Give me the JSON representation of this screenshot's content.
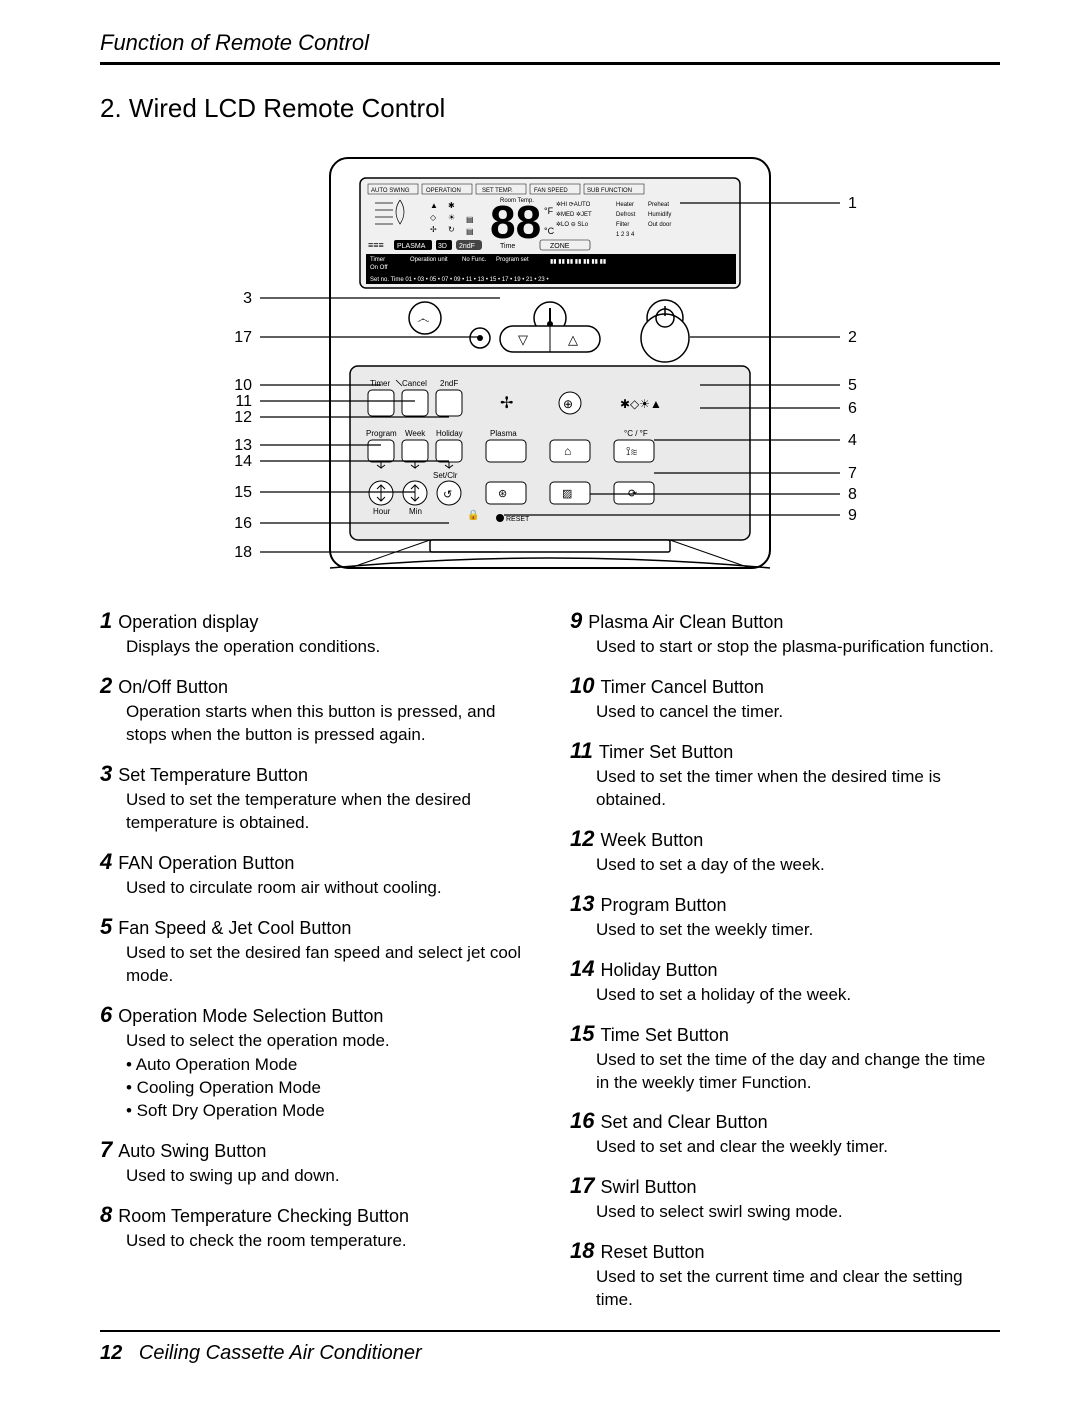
{
  "header": {
    "title": "Function of Remote Control"
  },
  "section": {
    "title": "2. Wired LCD Remote Control"
  },
  "diagram": {
    "left_labels": [
      "3",
      "17",
      "10",
      "11",
      "12",
      "13",
      "14",
      "15",
      "16",
      "18"
    ],
    "right_labels": [
      "1",
      "2",
      "5",
      "6",
      "4",
      "7",
      "8",
      "9"
    ],
    "left_y": [
      150,
      189,
      237,
      253,
      269,
      297,
      313,
      344,
      375,
      404
    ],
    "right_y": [
      55,
      189,
      237,
      260,
      292,
      325,
      346,
      367
    ],
    "device_stroke": "#000000",
    "device_fill": "#f3f3f3",
    "label_fontsize": 16,
    "btn_labels": {
      "timer": "Timer",
      "cancel": "Cancel",
      "secondf": "2ndF",
      "program": "Program",
      "week": "Week",
      "holiday": "Holiday",
      "plasma": "Plasma",
      "hour": "Hour",
      "min": "Min",
      "setclr": "Set/Clr",
      "cf": "°C / °F",
      "reset": "RESET"
    }
  },
  "items_left": [
    {
      "n": "1",
      "t": "Operation display",
      "d": "Displays the operation conditions."
    },
    {
      "n": "2",
      "t": "On/Off Button",
      "d": "Operation starts when this button is pressed, and stops when the button is pressed again."
    },
    {
      "n": "3",
      "t": "Set Temperature Button",
      "d": "Used to set the temperature when the desired temperature is obtained."
    },
    {
      "n": "4",
      "t": "FAN Operation Button",
      "d": "Used to circulate room air without cooling."
    },
    {
      "n": "5",
      "t": "Fan Speed & Jet Cool Button",
      "d": "Used to set the desired fan speed and select jet cool mode."
    },
    {
      "n": "6",
      "t": "Operation Mode Selection Button",
      "d": "Used to select the operation mode.",
      "sub": [
        "• Auto Operation Mode",
        "• Cooling Operation Mode",
        "• Soft Dry Operation Mode"
      ]
    },
    {
      "n": "7",
      "t": "Auto Swing Button",
      "d": "Used to swing up and down."
    },
    {
      "n": "8",
      "t": "Room Temperature Checking Button",
      "d": "Used to check the room temperature."
    }
  ],
  "items_right": [
    {
      "n": "9",
      "t": "Plasma Air Clean Button",
      "d": "Used to start or stop the plasma-purification function."
    },
    {
      "n": "10",
      "t": "Timer Cancel Button",
      "d": "Used to cancel the timer."
    },
    {
      "n": "11",
      "t": "Timer Set Button",
      "d": "Used to set the timer when the desired time is obtained."
    },
    {
      "n": "12",
      "t": "Week Button",
      "d": "Used to set a day of the week."
    },
    {
      "n": "13",
      "t": "Program Button",
      "d": "Used to set the weekly timer."
    },
    {
      "n": "14",
      "t": "Holiday Button",
      "d": "Used to set a holiday of the week."
    },
    {
      "n": "15",
      "t": "Time Set Button",
      "d": "Used to set the time of the day and change the time in the weekly timer Function."
    },
    {
      "n": "16",
      "t": "Set and Clear Button",
      "d": "Used to set and clear the weekly timer."
    },
    {
      "n": "17",
      "t": "Swirl Button",
      "d": "Used to select swirl swing mode."
    },
    {
      "n": "18",
      "t": "Reset Button",
      "d": "Used to set the current time and clear the setting time."
    }
  ],
  "footer": {
    "page": "12",
    "title": "Ceiling Cassette Air Conditioner"
  }
}
